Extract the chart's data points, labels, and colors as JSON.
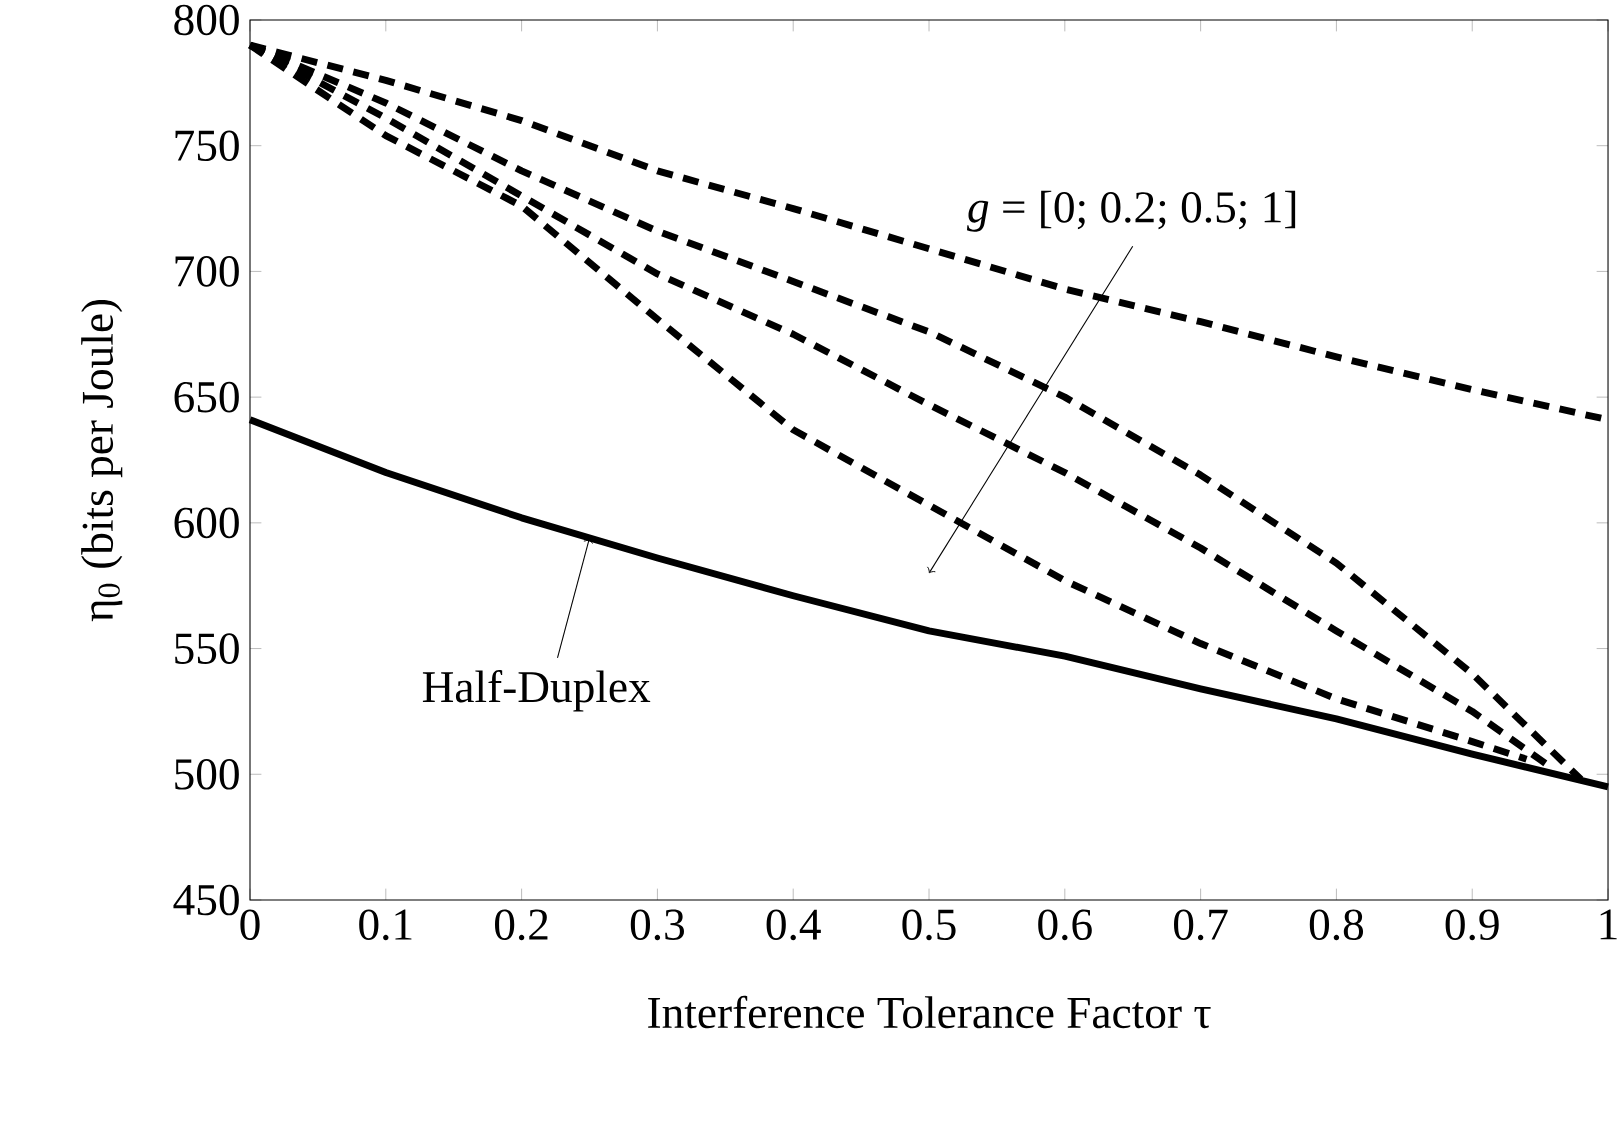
{
  "chart_data": {
    "type": "line",
    "xlabel": "Interference Tolerance Factor τ",
    "ylabel": "η$_{0}$ (bits per Joule)",
    "x": [
      0,
      0.1,
      0.2,
      0.3,
      0.4,
      0.5,
      0.6,
      0.7,
      0.8,
      0.9,
      1
    ],
    "series": [
      {
        "color": "#000000",
        "line_style": "dashed",
        "values": [
          790,
          776,
          760,
          740,
          725,
          709,
          693,
          680,
          666,
          653,
          641
        ]
      },
      {
        "color": "#000000",
        "line_style": "dashed",
        "x": [
          0,
          0.1,
          0.2,
          0.3,
          0.4,
          0.5,
          0.6,
          0.7,
          0.8,
          0.9,
          0.98
        ],
        "values": [
          790,
          767,
          740,
          716,
          696,
          676,
          650,
          619,
          584,
          540,
          498
        ]
      },
      {
        "color": "#000000",
        "line_style": "dashed",
        "x": [
          0,
          0.1,
          0.2,
          0.3,
          0.4,
          0.5,
          0.6,
          0.7,
          0.8,
          0.9,
          0.96
        ],
        "values": [
          790,
          761,
          730,
          699,
          675,
          647,
          620,
          590,
          557,
          525,
          502
        ]
      },
      {
        "color": "#000000",
        "line_style": "dashed",
        "x": [
          0,
          0.1,
          0.2,
          0.3,
          0.4,
          0.5,
          0.6,
          0.7,
          0.8,
          0.9,
          0.94
        ],
        "values": [
          790,
          754,
          726,
          681,
          637,
          607,
          577,
          552,
          530,
          513,
          506
        ]
      },
      {
        "color": "#000000",
        "line_style": "solid",
        "values": [
          641,
          620,
          602,
          586,
          571,
          557,
          547,
          534,
          522,
          508,
          495
        ]
      }
    ],
    "annotations": [
      "*g* = [0; 0.2; 0.5; 1]",
      {
        "text": "Half-Duplex",
        "x": 0.25,
        "y": 594
      }
    ],
    "xlim": [
      0,
      1
    ],
    "ylim": [
      450,
      800
    ],
    "xticks": [
      0,
      0.1,
      0.2,
      0.3,
      0.4,
      0.5,
      0.6,
      0.7,
      0.8,
      0.9,
      1
    ],
    "yticks": [
      450,
      500,
      550,
      600,
      650,
      700,
      750,
      800
    ],
    "grid": false
  }
}
